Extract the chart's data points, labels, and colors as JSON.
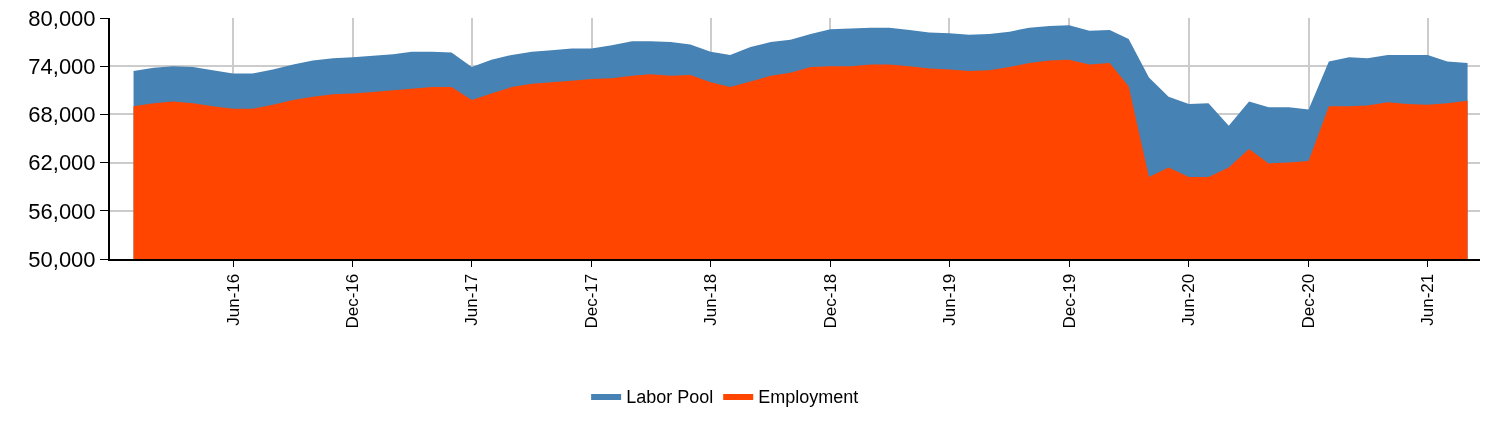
{
  "chart_data": {
    "type": "area",
    "x": [
      "2016-01",
      "2016-02",
      "2016-03",
      "2016-04",
      "2016-05",
      "2016-06",
      "2016-07",
      "2016-08",
      "2016-09",
      "2016-10",
      "2016-11",
      "2016-12",
      "2017-01",
      "2017-02",
      "2017-03",
      "2017-04",
      "2017-05",
      "2017-06",
      "2017-07",
      "2017-08",
      "2017-09",
      "2017-10",
      "2017-11",
      "2017-12",
      "2018-01",
      "2018-02",
      "2018-03",
      "2018-04",
      "2018-05",
      "2018-06",
      "2018-07",
      "2018-08",
      "2018-09",
      "2018-10",
      "2018-11",
      "2018-12",
      "2019-01",
      "2019-02",
      "2019-03",
      "2019-04",
      "2019-05",
      "2019-06",
      "2019-07",
      "2019-08",
      "2019-09",
      "2019-10",
      "2019-11",
      "2019-12",
      "2020-01",
      "2020-02",
      "2020-03",
      "2020-04",
      "2020-05",
      "2020-06",
      "2020-07",
      "2020-08",
      "2020-09",
      "2020-10",
      "2020-11",
      "2020-12",
      "2021-01",
      "2021-02",
      "2021-03",
      "2021-04",
      "2021-05",
      "2021-06",
      "2021-07",
      "2021-08"
    ],
    "series": [
      {
        "name": "Labor Pool",
        "color": "#4682b4",
        "values": [
          73400,
          73800,
          74000,
          73900,
          73500,
          73100,
          73100,
          73600,
          74200,
          74700,
          75000,
          75100,
          75300,
          75500,
          75800,
          75800,
          75700,
          73900,
          74800,
          75400,
          75800,
          76000,
          76200,
          76200,
          76600,
          77100,
          77100,
          77000,
          76700,
          75800,
          75400,
          76400,
          77000,
          77300,
          78000,
          78600,
          78700,
          78800,
          78800,
          78500,
          78200,
          78100,
          77900,
          78000,
          78300,
          78800,
          79000,
          79100,
          78400,
          78500,
          77400,
          72600,
          70200,
          69300,
          69400,
          66600,
          69600,
          68900,
          68900,
          68600,
          74600,
          75100,
          75000,
          75400,
          75400,
          75400,
          74600,
          74400
        ]
      },
      {
        "name": "Employment",
        "color": "#ff4500",
        "values": [
          69000,
          69400,
          69600,
          69400,
          69000,
          68700,
          68700,
          69200,
          69800,
          70200,
          70500,
          70600,
          70800,
          71000,
          71200,
          71400,
          71400,
          69800,
          70600,
          71400,
          71800,
          72000,
          72200,
          72400,
          72500,
          72800,
          73000,
          72800,
          72900,
          72000,
          71400,
          72100,
          72800,
          73200,
          73900,
          74000,
          74000,
          74200,
          74200,
          74000,
          73700,
          73600,
          73400,
          73500,
          73900,
          74400,
          74700,
          74800,
          74200,
          74400,
          71500,
          60200,
          61400,
          60200,
          60200,
          61400,
          63700,
          61900,
          62000,
          62200,
          69000,
          69000,
          69100,
          69500,
          69300,
          69200,
          69400,
          69700
        ]
      }
    ],
    "xlim": [
      "2015-11-26",
      "2021-08-20"
    ],
    "xticks": [
      {
        "value": "2016-06",
        "label": "Jun-16"
      },
      {
        "value": "2016-12",
        "label": "Dec-16"
      },
      {
        "value": "2017-06",
        "label": "Jun-17"
      },
      {
        "value": "2017-12",
        "label": "Dec-17"
      },
      {
        "value": "2018-06",
        "label": "Jun-18"
      },
      {
        "value": "2018-12",
        "label": "Dec-18"
      },
      {
        "value": "2019-06",
        "label": "Jun-19"
      },
      {
        "value": "2019-12",
        "label": "Dec-19"
      },
      {
        "value": "2020-06",
        "label": "Jun-20"
      },
      {
        "value": "2020-12",
        "label": "Dec-20"
      },
      {
        "value": "2021-06",
        "label": "Jun-21"
      }
    ],
    "ylim": [
      50000,
      80000
    ],
    "yticks": [
      {
        "value": 50000,
        "label": "50,000"
      },
      {
        "value": 56000,
        "label": "56,000"
      },
      {
        "value": 62000,
        "label": "62,000"
      },
      {
        "value": 68000,
        "label": "68,000"
      },
      {
        "value": 74000,
        "label": "74,000"
      },
      {
        "value": 80000,
        "label": "80,000"
      }
    ],
    "grid": true,
    "legend": "bottom"
  }
}
